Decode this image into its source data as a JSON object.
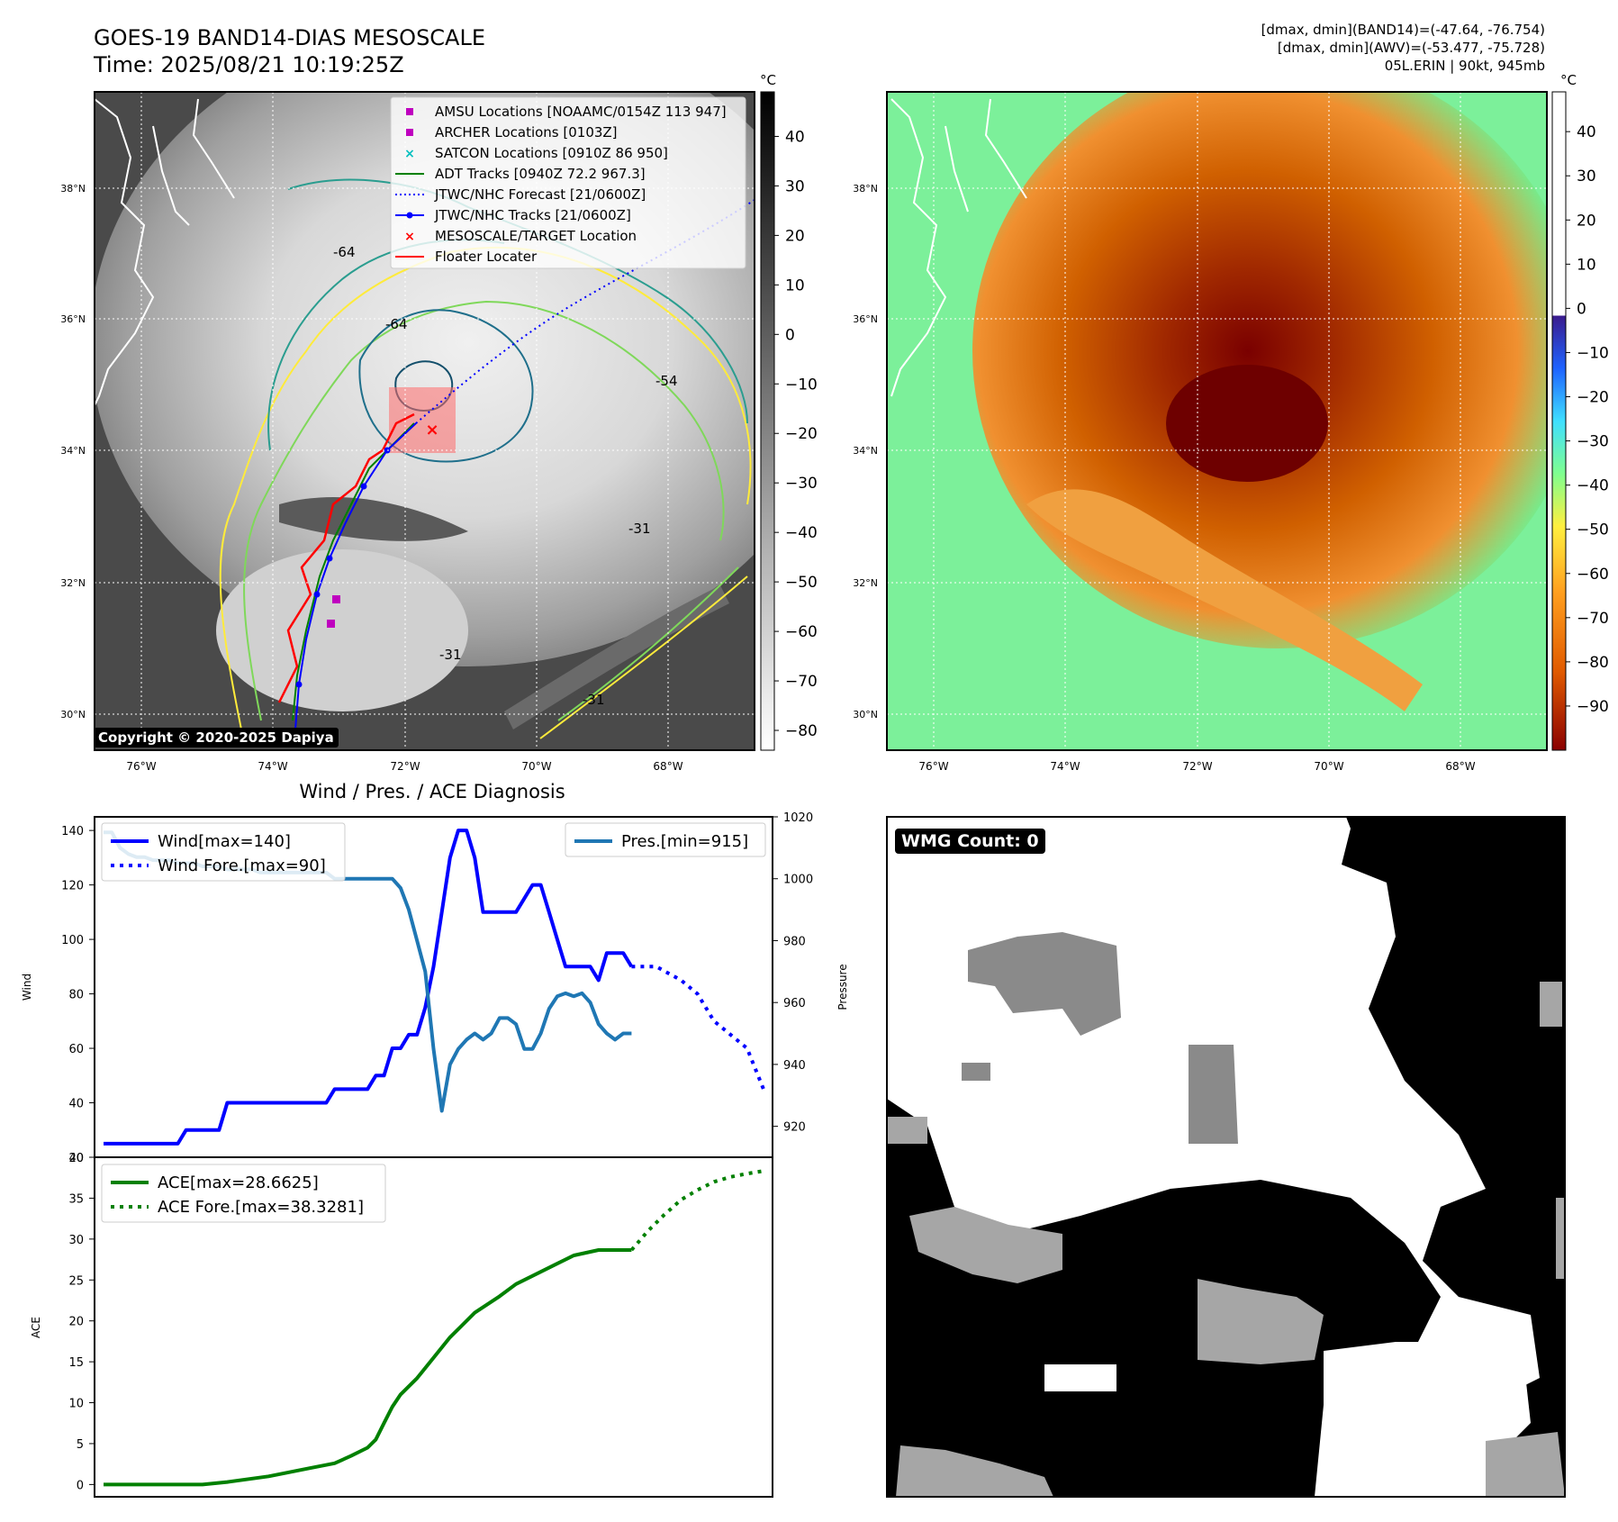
{
  "header": {
    "title_line1": "GOES-19 BAND14-DIAS MESOSCALE",
    "title_line2": "Time: 2025/08/21 10:19:25Z",
    "info_line1": "[dmax, dmin](BAND14)=(-47.64, -76.754)",
    "info_line2": "[dmax, dmin](AWV)=(-53.477, -75.728)",
    "info_line3": "05L.ERIN | 90kt, 945mb"
  },
  "maps": {
    "lat_ticks": [
      "38°N",
      "36°N",
      "34°N",
      "32°N",
      "30°N"
    ],
    "lon_ticks": [
      "76°W",
      "74°W",
      "72°W",
      "70°W",
      "68°W"
    ],
    "copyright": "Copyright © 2020-2025 Dapiya",
    "legend": [
      {
        "label": "AMSU Locations [NOAAMC/0154Z 113 947]",
        "marker": "square",
        "color": "#bf00bf"
      },
      {
        "label": "ARCHER Locations [0103Z]",
        "marker": "square",
        "color": "#bf00bf"
      },
      {
        "label": "SATCON Locations [0910Z 86 950]",
        "marker": "x",
        "color": "#00bfbf"
      },
      {
        "label": "ADT Tracks [0940Z 72.2 967.3]",
        "marker": "line",
        "color": "#008000"
      },
      {
        "label": "JTWC/NHC Forecast [21/0600Z]",
        "marker": "dotted",
        "color": "#0000ff"
      },
      {
        "label": "JTWC/NHC Tracks [21/0600Z]",
        "marker": "line-dot",
        "color": "#0000ff"
      },
      {
        "label": "MESOSCALE/TARGET Location",
        "marker": "x",
        "color": "#ff0000"
      },
      {
        "label": "Floater Locater",
        "marker": "line",
        "color": "#ff0000"
      }
    ],
    "contour_labels": [
      "-64",
      "-64",
      "-54",
      "-31",
      "-31",
      "-31"
    ],
    "ir_colorbar": {
      "unit": "°C",
      "ticks": [
        "40",
        "30",
        "20",
        "10",
        "0",
        "−10",
        "−20",
        "−30",
        "−40",
        "−50",
        "−60",
        "−70",
        "−80"
      ],
      "colors": [
        "#000000",
        "#ffffff"
      ]
    },
    "color_colorbar": {
      "unit": "°C",
      "ticks": [
        "40",
        "30",
        "20",
        "10",
        "0",
        "−10",
        "−20",
        "−30",
        "−40",
        "−50",
        "−60",
        "−70",
        "−80",
        "−90"
      ],
      "colors": [
        "#ffffff",
        "#3a1a8c",
        "#1f63ff",
        "#3fdfff",
        "#7fff8f",
        "#ffef3f",
        "#ff9f1f",
        "#e05a00",
        "#8a0000"
      ]
    }
  },
  "diag_title": "Wind / Pres. / ACE Diagnosis",
  "chart_data": [
    {
      "type": "line",
      "title": "Wind / Pres. / ACE Diagnosis",
      "ylabel": "Wind",
      "ylabel_right": "Pressure",
      "ylim": [
        20,
        145
      ],
      "ylim_right": [
        910,
        1020
      ],
      "xlim": [
        0,
        80
      ],
      "yticks": [
        20,
        40,
        60,
        80,
        100,
        120,
        140
      ],
      "yticks_right": [
        920,
        940,
        960,
        980,
        1000,
        1020
      ],
      "series": [
        {
          "name": "Wind[max=140]",
          "style": "solid",
          "color": "#0000ff",
          "axis": "left",
          "x": [
            0,
            1,
            2,
            3,
            4,
            5,
            6,
            7,
            8,
            9,
            10,
            11,
            12,
            13,
            14,
            15,
            16,
            17,
            18,
            19,
            20,
            21,
            22,
            23,
            24,
            25,
            26,
            27,
            28,
            29,
            30,
            31,
            32,
            33,
            34,
            35,
            36,
            37,
            38,
            39,
            40,
            41,
            42,
            43,
            44,
            45,
            46,
            47,
            48,
            49,
            50,
            51,
            52,
            53,
            54,
            55,
            56,
            57,
            58,
            59,
            60,
            61,
            62,
            63,
            64
          ],
          "y": [
            25,
            25,
            25,
            25,
            25,
            25,
            25,
            25,
            25,
            25,
            30,
            30,
            30,
            30,
            30,
            40,
            40,
            40,
            40,
            40,
            40,
            40,
            40,
            40,
            40,
            40,
            40,
            40,
            45,
            45,
            45,
            45,
            45,
            50,
            50,
            60,
            60,
            65,
            65,
            75,
            90,
            110,
            130,
            140,
            140,
            130,
            110,
            110,
            110,
            110,
            110,
            115,
            120,
            120,
            110,
            100,
            90,
            90,
            90,
            90,
            85,
            95,
            95,
            95,
            90
          ]
        },
        {
          "name": "Wind Fore.[max=90]",
          "style": "dotted",
          "color": "#0000ff",
          "axis": "left",
          "x": [
            64,
            67,
            70,
            72,
            74,
            76,
            78,
            80
          ],
          "y": [
            90,
            90,
            85,
            80,
            70,
            65,
            60,
            45
          ]
        },
        {
          "name": "Pres.[min=915]",
          "style": "solid",
          "color": "#1f77b4",
          "axis": "right",
          "x": [
            0,
            1,
            2,
            3,
            4,
            5,
            6,
            7,
            8,
            9,
            10,
            11,
            12,
            13,
            14,
            15,
            16,
            17,
            18,
            19,
            20,
            21,
            22,
            23,
            24,
            25,
            26,
            27,
            28,
            29,
            30,
            31,
            32,
            33,
            34,
            35,
            36,
            37,
            38,
            39,
            40,
            41,
            42,
            43,
            44,
            45,
            46,
            47,
            48,
            49,
            50,
            51,
            52,
            53,
            54,
            55,
            56,
            57,
            58,
            59,
            60,
            61,
            62,
            63,
            64
          ],
          "y": [
            1015,
            1015,
            1010,
            1008,
            1007,
            1007,
            1006,
            1006,
            1006,
            1005,
            1005,
            1005,
            1004,
            1004,
            1004,
            1003,
            1003,
            1003,
            1003,
            1002,
            1002,
            1002,
            1002,
            1002,
            1002,
            1002,
            1002,
            1002,
            1000,
            1000,
            1000,
            1000,
            1000,
            1000,
            1000,
            1000,
            997,
            990,
            980,
            970,
            945,
            925,
            940,
            945,
            948,
            950,
            948,
            950,
            955,
            955,
            953,
            945,
            945,
            950,
            958,
            962,
            963,
            962,
            963,
            960,
            953,
            950,
            948,
            950,
            950
          ]
        }
      ]
    },
    {
      "type": "line",
      "ylabel": "ACE",
      "ylim": [
        -1.5,
        40
      ],
      "yticks": [
        0,
        5,
        10,
        15,
        20,
        25,
        30,
        35,
        40
      ],
      "xlim": [
        0,
        80
      ],
      "series": [
        {
          "name": "ACE[max=28.6625]",
          "style": "solid",
          "color": "#008000",
          "x": [
            0,
            5,
            10,
            12,
            15,
            20,
            25,
            28,
            30,
            32,
            33,
            34,
            35,
            36,
            38,
            40,
            42,
            45,
            48,
            50,
            52,
            55,
            57,
            60,
            64
          ],
          "y": [
            0,
            0,
            0,
            0,
            0.3,
            1,
            2,
            2.6,
            3.5,
            4.5,
            5.5,
            7.5,
            9.5,
            11,
            13,
            15.5,
            18,
            21,
            23,
            24.5,
            25.5,
            27,
            28,
            28.66,
            28.66
          ]
        },
        {
          "name": "ACE Fore.[max=38.3281]",
          "style": "dotted",
          "color": "#008000",
          "x": [
            64,
            66,
            68,
            70,
            72,
            74,
            76,
            78,
            80
          ],
          "y": [
            28.66,
            31,
            33,
            34.8,
            36,
            37,
            37.6,
            38,
            38.33
          ]
        }
      ]
    }
  ],
  "wmg": {
    "label": "WMG Count: 0"
  }
}
